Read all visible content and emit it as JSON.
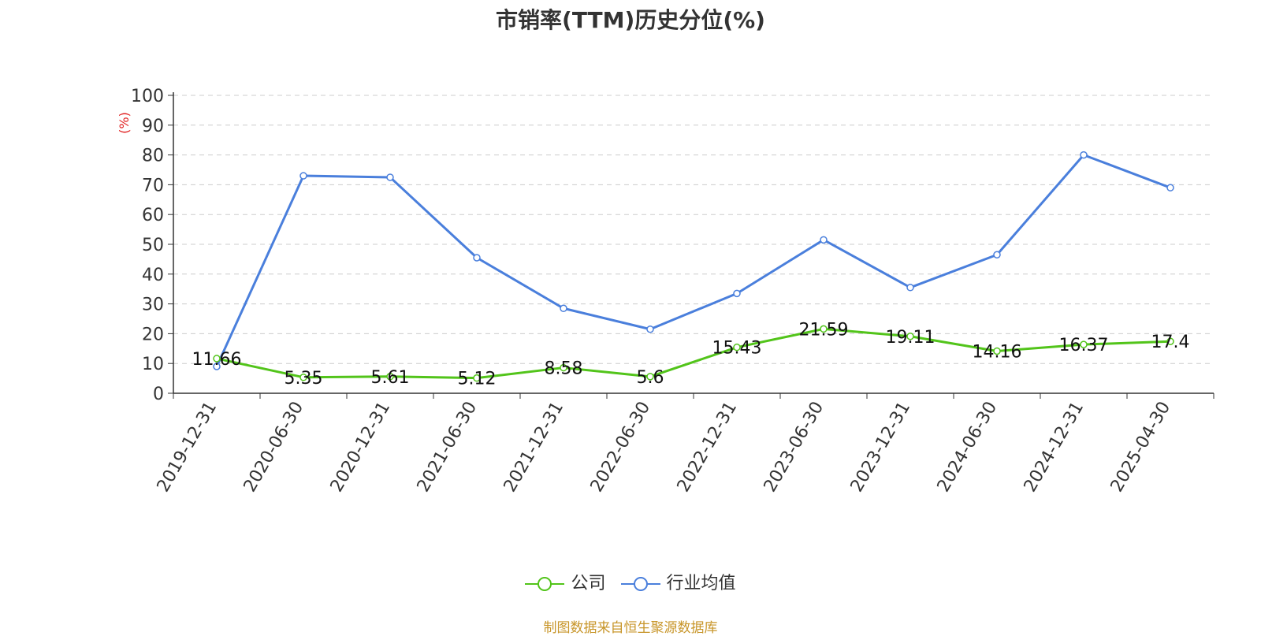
{
  "chart_data": {
    "type": "line",
    "title": "市销率(TTM)历史分位(%)",
    "ylabel": "(%)",
    "ylim": [
      0,
      100
    ],
    "yticks": [
      0,
      10,
      20,
      30,
      40,
      50,
      60,
      70,
      80,
      90,
      100
    ],
    "categories": [
      "2019-12-31",
      "2020-06-30",
      "2020-12-31",
      "2021-06-30",
      "2021-12-31",
      "2022-06-30",
      "2022-12-31",
      "2023-06-30",
      "2023-12-31",
      "2024-06-30",
      "2024-12-31",
      "2025-04-30"
    ],
    "grid": true,
    "legend_position": "bottom",
    "series": [
      {
        "name": "公司",
        "color": "#52c41a",
        "show_labels": true,
        "values": [
          11.66,
          5.35,
          5.61,
          5.12,
          8.58,
          5.6,
          15.43,
          21.59,
          19.11,
          14.16,
          16.37,
          17.4
        ]
      },
      {
        "name": "行业均值",
        "color": "#4a7fdc",
        "show_labels": false,
        "values": [
          9,
          73,
          72.5,
          45.5,
          28.5,
          21.5,
          33.5,
          51.5,
          35.5,
          46.5,
          80,
          69
        ]
      }
    ]
  },
  "source": {
    "text": "制图数据来自恒生聚源数据库",
    "color": "#c8962a"
  },
  "axis_label_color": "#e02020"
}
